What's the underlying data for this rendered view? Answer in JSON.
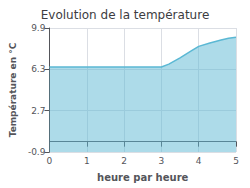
{
  "chart_data": {
    "type": "area",
    "title": "Evolution de la température",
    "xlabel": "heure par heure",
    "ylabel": "Température en °C",
    "x": [
      0,
      0.5,
      1.0,
      1.5,
      2.0,
      2.5,
      3.0,
      3.2,
      3.5,
      3.8,
      4.0,
      4.3,
      4.6,
      4.8,
      5.0
    ],
    "values": [
      6.5,
      6.5,
      6.5,
      6.5,
      6.5,
      6.5,
      6.5,
      6.75,
      7.3,
      7.9,
      8.3,
      8.6,
      8.85,
      9.0,
      9.1
    ],
    "color": "#5bb8d4",
    "xlim": [
      0,
      5
    ],
    "ylim": [
      -0.9,
      9.9
    ],
    "xticks": [
      0,
      1,
      2,
      3,
      4,
      5
    ],
    "yticks": [
      -0.9,
      2.7,
      6.3,
      9.9
    ],
    "grid": true
  }
}
